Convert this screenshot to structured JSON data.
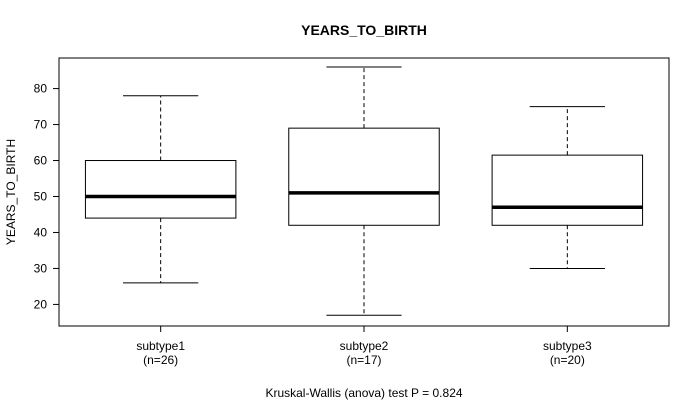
{
  "chart_data": {
    "type": "boxplot",
    "title": "YEARS_TO_BIRTH",
    "ylabel": "YEARS_TO_BIRTH",
    "xlabel": "",
    "footnote": "Kruskal-Wallis (anova) test P = 0.824",
    "ylim": [
      14,
      88.5
    ],
    "yticks": [
      20,
      30,
      40,
      50,
      60,
      70,
      80
    ],
    "grid": false,
    "legend": "none",
    "colors": {
      "box": "#000000",
      "background": "#ffffff"
    },
    "categories": [
      {
        "name": "subtype1",
        "n_label": "(n=26)",
        "min": 26,
        "q1": 44,
        "median": 50,
        "q3": 60,
        "max": 78
      },
      {
        "name": "subtype2",
        "n_label": "(n=17)",
        "min": 17,
        "q1": 42,
        "median": 51,
        "q3": 69,
        "max": 86
      },
      {
        "name": "subtype3",
        "n_label": "(n=20)",
        "min": 30,
        "q1": 42,
        "median": 47,
        "q3": 61.5,
        "max": 75
      }
    ]
  }
}
